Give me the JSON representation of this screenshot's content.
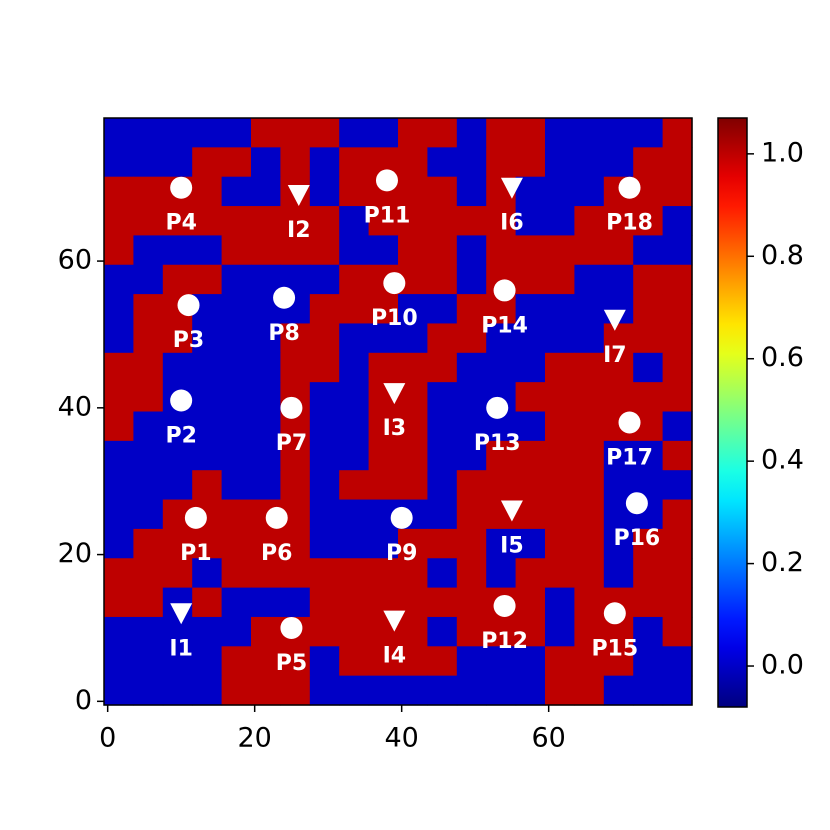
{
  "chart_data": {
    "type": "heatmap",
    "cmap": "jet",
    "origin": "upper",
    "xlim": [
      -0.5,
      79.5
    ],
    "ylim": [
      -0.5,
      79.5
    ],
    "xticks": [
      0,
      20,
      40,
      60
    ],
    "yticks": [
      0,
      20,
      40,
      60
    ],
    "clim": [
      -0.08,
      1.07
    ],
    "cticks": [
      {
        "value": 0,
        "label": "0.0"
      },
      {
        "value": 0.2,
        "label": "0.2"
      },
      {
        "value": 0.4,
        "label": "0.4"
      },
      {
        "value": 0.6,
        "label": "0.6"
      },
      {
        "value": 0.8,
        "label": "0.8"
      },
      {
        "value": 1,
        "label": "1.0"
      }
    ],
    "z": [
      [
        0,
        0,
        0,
        0,
        0,
        1,
        1,
        1,
        0,
        0,
        1,
        1,
        0,
        1,
        1,
        0,
        0,
        0,
        0,
        1
      ],
      [
        0,
        0,
        0,
        1,
        1,
        0,
        1,
        0,
        1,
        1,
        1,
        0,
        0,
        1,
        1,
        0,
        0,
        0,
        1,
        1
      ],
      [
        1,
        1,
        1,
        1,
        0,
        0,
        1,
        0,
        1,
        1,
        1,
        1,
        0,
        1,
        0,
        0,
        0,
        1,
        1,
        1
      ],
      [
        1,
        1,
        1,
        1,
        1,
        1,
        1,
        1,
        0,
        1,
        1,
        1,
        1,
        1,
        0,
        0,
        1,
        1,
        1,
        0
      ],
      [
        1,
        0,
        0,
        0,
        1,
        1,
        1,
        1,
        0,
        0,
        1,
        1,
        0,
        1,
        1,
        1,
        1,
        1,
        0,
        0
      ],
      [
        0,
        0,
        1,
        1,
        0,
        0,
        0,
        0,
        1,
        1,
        1,
        1,
        0,
        1,
        1,
        1,
        0,
        0,
        1,
        1
      ],
      [
        0,
        1,
        1,
        0,
        0,
        0,
        0,
        1,
        1,
        1,
        0,
        0,
        1,
        1,
        0,
        0,
        0,
        0,
        1,
        1
      ],
      [
        0,
        1,
        1,
        0,
        0,
        0,
        1,
        1,
        0,
        0,
        0,
        1,
        1,
        0,
        0,
        0,
        0,
        1,
        1,
        1
      ],
      [
        1,
        1,
        0,
        0,
        0,
        0,
        1,
        1,
        0,
        1,
        1,
        1,
        0,
        0,
        0,
        1,
        1,
        1,
        0,
        1
      ],
      [
        1,
        1,
        0,
        0,
        0,
        0,
        1,
        0,
        0,
        1,
        1,
        0,
        0,
        0,
        1,
        1,
        1,
        1,
        1,
        1
      ],
      [
        1,
        0,
        0,
        0,
        0,
        0,
        1,
        0,
        0,
        1,
        1,
        0,
        0,
        0,
        0,
        1,
        1,
        1,
        1,
        0
      ],
      [
        0,
        0,
        0,
        0,
        0,
        0,
        1,
        0,
        0,
        1,
        1,
        0,
        0,
        1,
        1,
        1,
        1,
        0,
        0,
        1
      ],
      [
        0,
        0,
        0,
        1,
        0,
        0,
        1,
        0,
        1,
        1,
        1,
        0,
        1,
        1,
        1,
        1,
        1,
        0,
        0,
        0
      ],
      [
        0,
        0,
        1,
        1,
        1,
        1,
        1,
        0,
        0,
        0,
        0,
        0,
        1,
        1,
        1,
        1,
        1,
        0,
        0,
        1
      ],
      [
        0,
        1,
        1,
        1,
        1,
        1,
        1,
        0,
        0,
        0,
        1,
        1,
        1,
        0,
        0,
        1,
        1,
        0,
        1,
        1
      ],
      [
        1,
        1,
        1,
        0,
        1,
        1,
        1,
        1,
        1,
        1,
        1,
        0,
        1,
        0,
        1,
        1,
        1,
        0,
        1,
        1
      ],
      [
        1,
        1,
        0,
        1,
        0,
        0,
        0,
        1,
        1,
        1,
        1,
        1,
        1,
        1,
        1,
        0,
        1,
        1,
        1,
        1
      ],
      [
        0,
        0,
        0,
        0,
        0,
        1,
        1,
        1,
        1,
        1,
        1,
        0,
        1,
        1,
        1,
        0,
        1,
        1,
        0,
        1
      ],
      [
        0,
        0,
        0,
        0,
        1,
        1,
        1,
        0,
        1,
        1,
        1,
        1,
        0,
        0,
        0,
        1,
        1,
        1,
        0,
        0
      ],
      [
        0,
        0,
        0,
        0,
        1,
        1,
        1,
        0,
        0,
        0,
        0,
        0,
        0,
        0,
        0,
        1,
        1,
        0,
        0,
        0
      ]
    ],
    "series": [
      {
        "marker": "circle",
        "color": "#ffffff",
        "x": [
          10,
          38,
          71,
          11,
          24,
          39,
          54,
          10,
          25,
          53,
          71,
          12,
          23,
          40,
          72,
          25,
          54,
          69
        ],
        "y": [
          70,
          71,
          70,
          54,
          55,
          57,
          56,
          41,
          40,
          40,
          38,
          25,
          25,
          25,
          27,
          10,
          13,
          12
        ],
        "labels": [
          "P4",
          "P11",
          "P18",
          "P3",
          "P8",
          "P10",
          "P14",
          "P2",
          "P7",
          "P13",
          "P17",
          "P1",
          "P6",
          "P9",
          "P16",
          "P5",
          "P12",
          "P15"
        ]
      },
      {
        "marker": "triangle",
        "color": "#ffffff",
        "x": [
          26,
          55,
          69,
          39,
          55,
          10,
          39
        ],
        "y": [
          69,
          70,
          52,
          42,
          26,
          12,
          11
        ],
        "labels": [
          "I2",
          "I6",
          "I7",
          "I3",
          "I5",
          "I1",
          "I4"
        ]
      }
    ]
  }
}
